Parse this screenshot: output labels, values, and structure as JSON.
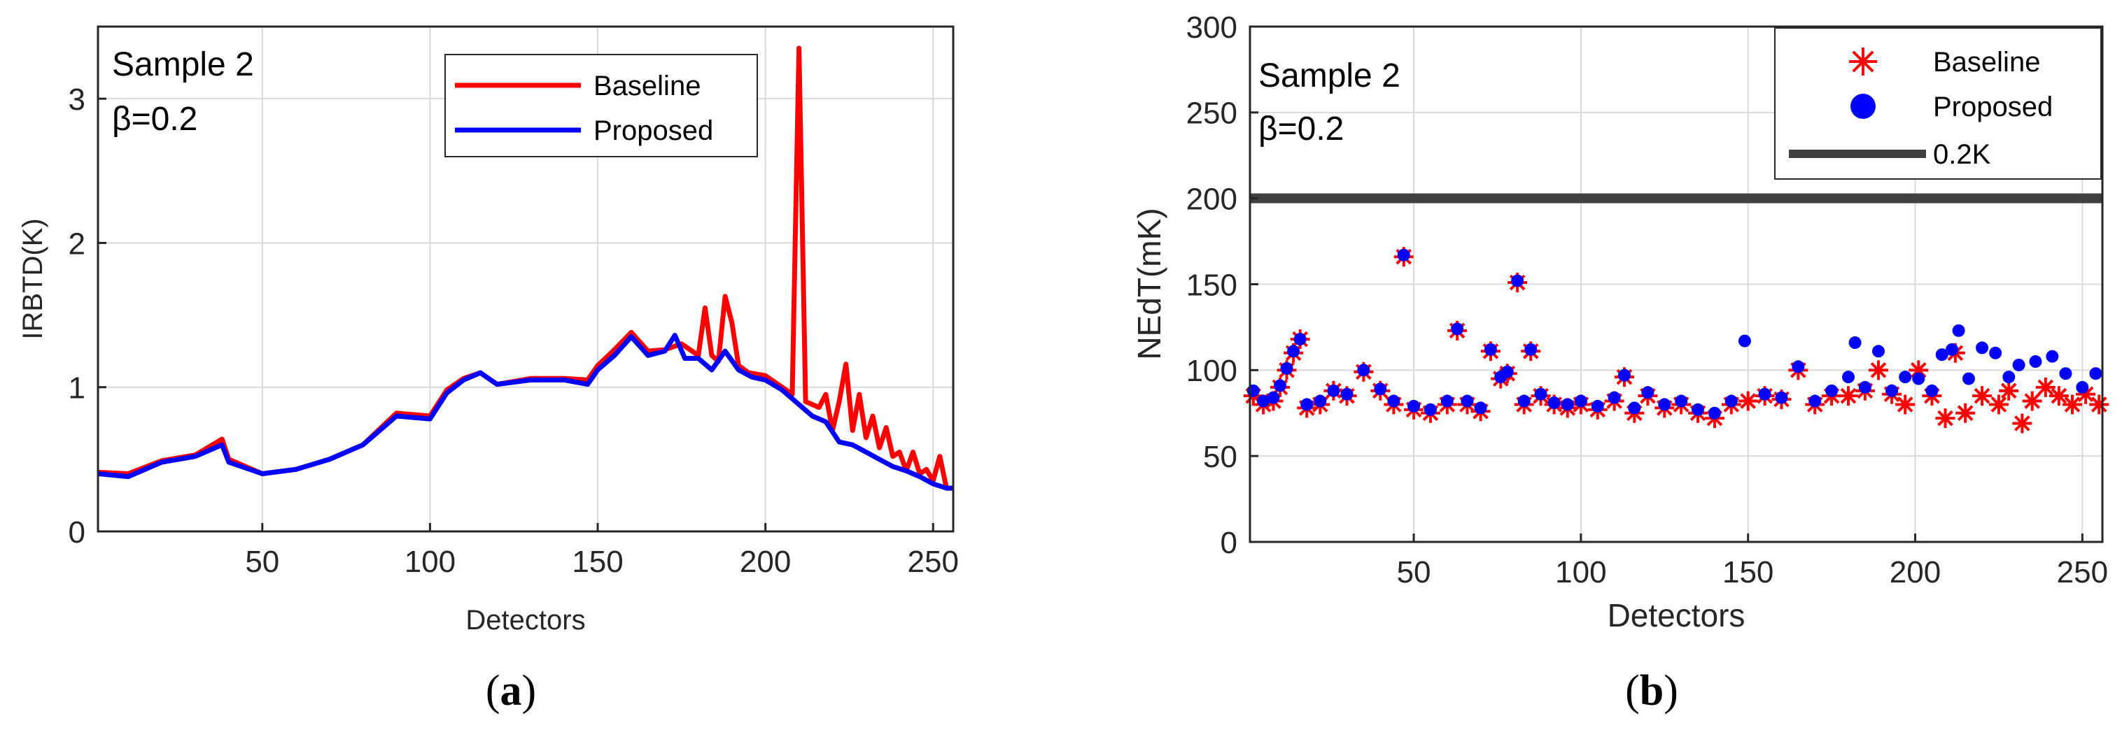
{
  "colors": {
    "baseline": "#ff0000",
    "proposed": "#0000ff",
    "threshold": "#404040",
    "grid": "#d9d9d9",
    "axis": "#262626"
  },
  "panels": [
    {
      "caption_open": "(",
      "caption_letter": "a",
      "caption_close": ")",
      "annotation_line1": "Sample 2",
      "annotation_line2": "β=0.2"
    },
    {
      "caption_open": "(",
      "caption_letter": "b",
      "caption_close": ")",
      "annotation_line1": "Sample 2",
      "annotation_line2": "β=0.2"
    }
  ],
  "chart_data": [
    {
      "type": "line",
      "title": "",
      "xlabel": "Detectors",
      "ylabel": "IRBTD(K)",
      "xlim": [
        1,
        256
      ],
      "ylim": [
        0,
        3.5
      ],
      "grid": true,
      "xticks": [
        50,
        100,
        150,
        200,
        250
      ],
      "yticks": [
        0,
        1,
        2,
        3
      ],
      "legend_position": "top-center",
      "legend": [
        "Baseline",
        "Proposed"
      ],
      "series": [
        {
          "name": "Baseline",
          "points": [
            [
              1,
              0.41
            ],
            [
              10,
              0.4
            ],
            [
              20,
              0.49
            ],
            [
              30,
              0.53
            ],
            [
              38,
              0.64
            ],
            [
              40,
              0.5
            ],
            [
              50,
              0.4
            ],
            [
              60,
              0.43
            ],
            [
              70,
              0.5
            ],
            [
              80,
              0.6
            ],
            [
              90,
              0.82
            ],
            [
              100,
              0.8
            ],
            [
              105,
              0.98
            ],
            [
              110,
              1.06
            ],
            [
              115,
              1.1
            ],
            [
              120,
              1.02
            ],
            [
              130,
              1.06
            ],
            [
              140,
              1.06
            ],
            [
              147,
              1.05
            ],
            [
              150,
              1.15
            ],
            [
              155,
              1.26
            ],
            [
              160,
              1.38
            ],
            [
              165,
              1.25
            ],
            [
              170,
              1.26
            ],
            [
              175,
              1.3
            ],
            [
              180,
              1.22
            ],
            [
              182,
              1.55
            ],
            [
              184,
              1.22
            ],
            [
              186,
              1.18
            ],
            [
              188,
              1.63
            ],
            [
              190,
              1.45
            ],
            [
              192,
              1.15
            ],
            [
              195,
              1.1
            ],
            [
              200,
              1.08
            ],
            [
              205,
              1.0
            ],
            [
              208,
              0.95
            ],
            [
              210,
              3.35
            ],
            [
              212,
              0.9
            ],
            [
              214,
              0.88
            ],
            [
              216,
              0.86
            ],
            [
              218,
              0.95
            ],
            [
              220,
              0.7
            ],
            [
              222,
              0.9
            ],
            [
              224,
              1.16
            ],
            [
              226,
              0.7
            ],
            [
              228,
              0.95
            ],
            [
              230,
              0.65
            ],
            [
              232,
              0.8
            ],
            [
              234,
              0.58
            ],
            [
              236,
              0.72
            ],
            [
              238,
              0.52
            ],
            [
              240,
              0.55
            ],
            [
              242,
              0.42
            ],
            [
              244,
              0.55
            ],
            [
              246,
              0.4
            ],
            [
              248,
              0.43
            ],
            [
              250,
              0.35
            ],
            [
              252,
              0.52
            ],
            [
              254,
              0.3
            ],
            [
              256,
              0.3
            ]
          ]
        },
        {
          "name": "Proposed",
          "points": [
            [
              1,
              0.4
            ],
            [
              10,
              0.38
            ],
            [
              20,
              0.48
            ],
            [
              30,
              0.52
            ],
            [
              38,
              0.6
            ],
            [
              40,
              0.48
            ],
            [
              50,
              0.4
            ],
            [
              60,
              0.43
            ],
            [
              70,
              0.5
            ],
            [
              80,
              0.6
            ],
            [
              90,
              0.8
            ],
            [
              100,
              0.78
            ],
            [
              105,
              0.96
            ],
            [
              110,
              1.05
            ],
            [
              115,
              1.1
            ],
            [
              120,
              1.02
            ],
            [
              130,
              1.05
            ],
            [
              140,
              1.05
            ],
            [
              147,
              1.02
            ],
            [
              150,
              1.12
            ],
            [
              155,
              1.22
            ],
            [
              160,
              1.35
            ],
            [
              165,
              1.22
            ],
            [
              170,
              1.25
            ],
            [
              173,
              1.36
            ],
            [
              176,
              1.2
            ],
            [
              180,
              1.2
            ],
            [
              184,
              1.12
            ],
            [
              188,
              1.25
            ],
            [
              192,
              1.12
            ],
            [
              196,
              1.07
            ],
            [
              200,
              1.05
            ],
            [
              205,
              0.98
            ],
            [
              210,
              0.88
            ],
            [
              214,
              0.8
            ],
            [
              218,
              0.76
            ],
            [
              222,
              0.62
            ],
            [
              226,
              0.6
            ],
            [
              230,
              0.55
            ],
            [
              234,
              0.5
            ],
            [
              238,
              0.45
            ],
            [
              242,
              0.42
            ],
            [
              246,
              0.38
            ],
            [
              250,
              0.33
            ],
            [
              254,
              0.3
            ],
            [
              256,
              0.3
            ]
          ]
        }
      ]
    },
    {
      "type": "scatter",
      "title": "",
      "xlabel": "Detectors",
      "ylabel": "NEdT(mK)",
      "xlim": [
        1,
        256
      ],
      "ylim": [
        0,
        300
      ],
      "grid": true,
      "xticks": [
        50,
        100,
        150,
        200,
        250
      ],
      "yticks": [
        0,
        50,
        100,
        150,
        200,
        250,
        300
      ],
      "legend_position": "top-right",
      "legend": [
        "Baseline",
        "Proposed",
        "0.2K"
      ],
      "series": [
        {
          "name": "Baseline",
          "marker": "asterisk",
          "x": [
            2,
            5,
            8,
            10,
            12,
            14,
            16,
            18,
            22,
            26,
            30,
            35,
            40,
            44,
            47,
            50,
            55,
            60,
            63,
            66,
            70,
            73,
            76,
            78,
            81,
            83,
            85,
            88,
            92,
            96,
            100,
            105,
            110,
            113,
            116,
            120,
            125,
            130,
            135,
            140,
            145,
            150,
            155,
            160,
            165,
            170,
            175,
            180,
            185,
            189,
            193,
            197,
            201,
            205,
            209,
            212,
            215,
            220,
            225,
            228,
            232,
            235,
            239,
            243,
            247,
            251,
            255
          ],
          "y": [
            85,
            80,
            82,
            90,
            100,
            110,
            118,
            78,
            80,
            88,
            85,
            99,
            88,
            80,
            166,
            77,
            75,
            80,
            123,
            80,
            76,
            111,
            95,
            98,
            151,
            80,
            111,
            85,
            80,
            78,
            80,
            77,
            82,
            96,
            75,
            85,
            78,
            80,
            75,
            72,
            80,
            82,
            85,
            83,
            100,
            80,
            85,
            85,
            88,
            100,
            86,
            80,
            100,
            85,
            72,
            110,
            75,
            85,
            80,
            88,
            69,
            82,
            90,
            85,
            80,
            86,
            80
          ]
        },
        {
          "name": "Proposed",
          "marker": "circle",
          "x": [
            2,
            5,
            8,
            10,
            12,
            14,
            16,
            18,
            22,
            26,
            30,
            35,
            40,
            44,
            47,
            50,
            55,
            60,
            63,
            66,
            70,
            73,
            76,
            78,
            81,
            83,
            85,
            88,
            92,
            96,
            100,
            105,
            110,
            113,
            116,
            120,
            125,
            130,
            135,
            140,
            145,
            149,
            155,
            160,
            165,
            170,
            175,
            180,
            182,
            185,
            189,
            193,
            197,
            201,
            205,
            208,
            211,
            213,
            216,
            220,
            224,
            228,
            231,
            236,
            241,
            245,
            250,
            254
          ],
          "y": [
            88,
            82,
            84,
            91,
            101,
            111,
            118,
            80,
            82,
            88,
            86,
            100,
            89,
            82,
            167,
            79,
            77,
            82,
            124,
            82,
            78,
            112,
            96,
            99,
            152,
            82,
            112,
            86,
            81,
            80,
            82,
            79,
            84,
            97,
            78,
            87,
            80,
            82,
            77,
            75,
            82,
            117,
            86,
            84,
            102,
            82,
            88,
            96,
            116,
            90,
            111,
            88,
            96,
            95,
            88,
            109,
            112,
            123,
            95,
            113,
            110,
            96,
            103,
            105,
            108,
            98,
            90,
            98
          ]
        },
        {
          "name": "0.2K",
          "marker": "line",
          "y_constant": 200
        }
      ]
    }
  ]
}
